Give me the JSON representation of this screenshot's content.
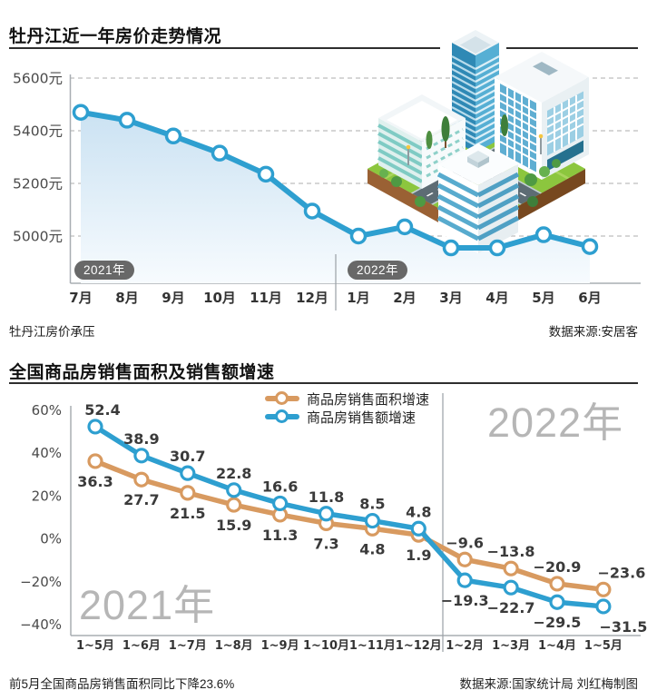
{
  "chart_data": [
    {
      "type": "area",
      "title": "牡丹江近一年房价走势情况",
      "note": "牡丹江房价承压",
      "source": "数据来源:安居客",
      "unit": "元",
      "x_labels": [
        "7月",
        "8月",
        "9月",
        "10月",
        "11月",
        "12月",
        "1月",
        "2月",
        "3月",
        "4月",
        "5月",
        "6月"
      ],
      "year_badges": [
        "2021年",
        "2022年"
      ],
      "year_split_after_index": 5,
      "values_estimated": true,
      "values": [
        5470,
        5440,
        5380,
        5315,
        5235,
        5095,
        5000,
        5035,
        4955,
        4955,
        5005,
        4960
      ],
      "yticks": [
        {
          "label": "5600元",
          "value": 5600
        },
        {
          "label": "5400元",
          "value": 5400
        },
        {
          "label": "5200元",
          "value": 5200
        },
        {
          "label": "5000元",
          "value": 5000
        }
      ],
      "ylim": [
        4840,
        5620
      ],
      "grid": "dashed-horizontal",
      "line_color": "#2E9FD0",
      "area_fill_top": "#C2DDF0",
      "area_fill_bottom": "#F7FBFE",
      "illustration": "isometric-city-blocks"
    },
    {
      "type": "line",
      "title": "全国商品房销售面积及销售额增速",
      "note": "前5月全国商品房销售面积同比下降23.6%",
      "source": "数据来源:国家统计局 刘红梅制图",
      "categories": [
        "1~5月",
        "1~6月",
        "1~7月",
        "1~8月",
        "1~9月",
        "1~10月",
        "1~11月",
        "1~12月",
        "1~2月",
        "1~3月",
        "1~4月",
        "1~5月"
      ],
      "series": [
        {
          "name": "商品房销售面积增速",
          "color": "#D89A60",
          "values": [
            36.3,
            27.7,
            21.5,
            15.9,
            11.3,
            7.3,
            4.8,
            1.9,
            -9.6,
            -13.8,
            -20.9,
            -23.6
          ]
        },
        {
          "name": "商品房销售额增速",
          "color": "#2E9FD0",
          "values": [
            52.4,
            38.9,
            30.7,
            22.8,
            16.6,
            11.8,
            8.5,
            4.8,
            -19.3,
            -22.7,
            -29.5,
            -31.5
          ]
        }
      ],
      "yticks": [
        {
          "label": "60%",
          "value": 60
        },
        {
          "label": "40%",
          "value": 40
        },
        {
          "label": "20%",
          "value": 20
        },
        {
          "label": "0%",
          "value": 0
        },
        {
          "label": "-20%",
          "value": -20
        },
        {
          "label": "-40%",
          "value": -40
        }
      ],
      "ylim": [
        -45,
        65
      ],
      "grid": "none",
      "watermarks": [
        "2021年",
        "2022年"
      ],
      "legend_position": "top-center",
      "year_split_after_index": 7
    }
  ]
}
